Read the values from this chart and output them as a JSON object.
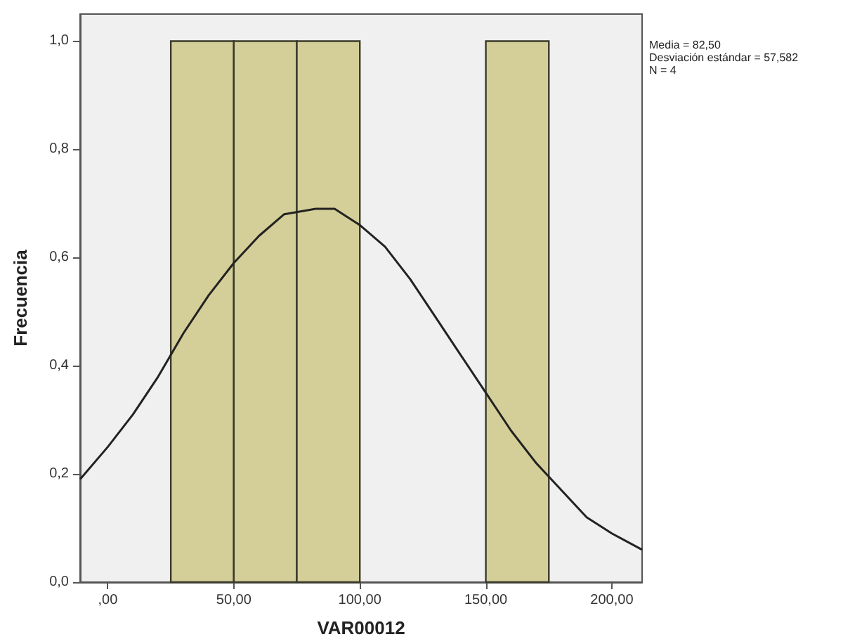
{
  "chart_data": [
    {
      "type": "histogram",
      "xlabel": "VAR00012",
      "ylabel": "Frecuencia",
      "bins": [
        25,
        50,
        75,
        100,
        125,
        150,
        175
      ],
      "values": [
        1,
        1,
        1,
        0,
        0,
        1
      ],
      "color": "#d4cf98",
      "xlim": [
        -11,
        212
      ],
      "ylim": [
        0,
        1.05
      ],
      "xticks": [
        {
          "value": 0,
          "label": ",00"
        },
        {
          "value": 50,
          "label": "50,00"
        },
        {
          "value": 100,
          "label": "100,00"
        },
        {
          "value": 150,
          "label": "150,00"
        },
        {
          "value": 200,
          "label": "200,00"
        }
      ],
      "yticks": [
        {
          "value": 0,
          "label": "0,0"
        },
        {
          "value": 0.2,
          "label": "0,2"
        },
        {
          "value": 0.4,
          "label": "0,4"
        },
        {
          "value": 0.6,
          "label": "0,6"
        },
        {
          "value": 0.8,
          "label": "0,8"
        },
        {
          "value": 1,
          "label": "1,0"
        }
      ],
      "series": [
        {
          "type": "line",
          "color": "#222222",
          "x": [
            -11,
            0,
            10,
            20,
            30,
            40,
            50,
            60,
            70,
            82.5,
            90,
            100,
            110,
            120,
            130,
            140,
            150,
            160,
            170,
            180,
            190,
            200,
            212
          ],
          "values": [
            0.19,
            0.25,
            0.31,
            0.38,
            0.46,
            0.53,
            0.59,
            0.64,
            0.68,
            0.69,
            0.69,
            0.66,
            0.62,
            0.56,
            0.49,
            0.42,
            0.35,
            0.28,
            0.22,
            0.17,
            0.12,
            0.09,
            0.06
          ]
        }
      ],
      "marker": "none",
      "grid": false,
      "annotations": [
        "Media = 82,50",
        "Desviación estándar = 57,582",
        "N = 4"
      ]
    }
  ]
}
